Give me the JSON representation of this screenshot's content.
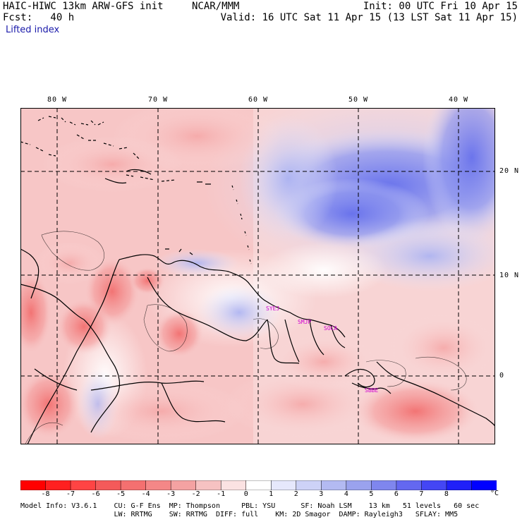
{
  "header": {
    "model": "HAIC-HIWC 13km ARW-GFS init",
    "center": "NCAR/MMM",
    "init": "Init: 00 UTC Fri 10 Apr 15",
    "fcst": "Fcst:   40 h",
    "valid": "Valid: 16 UTC Sat 11 Apr 15 (13 LST Sat 11 Apr 15)",
    "field": "Lifted index"
  },
  "map": {
    "lon_labels": [
      "80 W",
      "70 W",
      "60 W",
      "50 W",
      "40 W"
    ],
    "lat_labels": [
      "20 N",
      "10 N",
      "0"
    ],
    "stations": [
      "SYEJ",
      "SMJP",
      "SOCA",
      "SBBE"
    ]
  },
  "colorbar": {
    "labels": [
      "-8",
      "-7",
      "-6",
      "-5",
      "-4",
      "-3",
      "-2",
      "-1",
      "0",
      "1",
      "2",
      "3",
      "4",
      "5",
      "6",
      "7",
      "8"
    ],
    "unit": "°C",
    "colors": [
      "#ff0000",
      "#ff2020",
      "#ff4444",
      "#f45a5a",
      "#f47070",
      "#f48787",
      "#f4a2a2",
      "#f6c2c2",
      "#fbe2e2",
      "#ffffff",
      "#e6e8fc",
      "#cdd2f7",
      "#b3baf2",
      "#9aa2ee",
      "#7f86ee",
      "#6468f0",
      "#4446f4",
      "#2020f8",
      "#0000ff"
    ]
  },
  "footer": {
    "line1": "Model Info: V3.6.1    CU: G-F Ens  MP: Thompson     PBL: YSU      SF: Noah LSM    13 km   51 levels   60 sec",
    "line2": "                      LW: RRTMG    SW: RRTMG  DIFF: full    KM: 2D Smagor  DAMP: Rayleigh3   SFLAY: MM5"
  }
}
